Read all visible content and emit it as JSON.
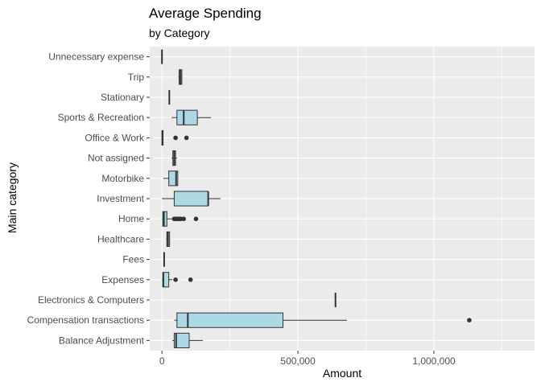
{
  "chart_data": {
    "type": "boxplot",
    "orientation": "horizontal",
    "title": "Average Spending",
    "subtitle": "by Category",
    "xlabel": "Amount",
    "ylabel": "Main category",
    "xlim": [
      -45000,
      1370000
    ],
    "x_ticks": [
      0,
      500000,
      1000000
    ],
    "x_tick_labels": [
      "0",
      "500,000",
      "1,000,000"
    ],
    "grid": true,
    "panel_background": "#EBEBEB",
    "box_fill": "#ADD8E6",
    "categories": [
      {
        "label": "Balance Adjustment",
        "min": 38000,
        "q1": 45000,
        "median": 52000,
        "q3": 100000,
        "max": 150000,
        "outliers": []
      },
      {
        "label": "Compensation transactions",
        "min": 45000,
        "q1": 55000,
        "median": 95000,
        "q3": 445000,
        "max": 680000,
        "outliers": [
          1130000
        ]
      },
      {
        "label": "Electronics & Computers",
        "min": 638000,
        "q1": 638000,
        "median": 638000,
        "q3": 638000,
        "max": 638000,
        "outliers": []
      },
      {
        "label": "Expenses",
        "min": 0,
        "q1": 3000,
        "median": 5000,
        "q3": 25000,
        "max": 38000,
        "outliers": [
          50000,
          105000
        ]
      },
      {
        "label": "Fees",
        "min": 8000,
        "q1": 8000,
        "median": 8000,
        "q3": 8000,
        "max": 8000,
        "outliers": []
      },
      {
        "label": "Healthcare",
        "min": 15000,
        "q1": 18000,
        "median": 22000,
        "q3": 28000,
        "max": 30000,
        "outliers": []
      },
      {
        "label": "Home",
        "min": 0,
        "q1": 3000,
        "median": 7000,
        "q3": 18000,
        "max": 40000,
        "outliers": [
          45000,
          50000,
          55000,
          60000,
          65000,
          70000,
          80000,
          125000
        ]
      },
      {
        "label": "Investment",
        "min": 0,
        "q1": 45000,
        "median": 170000,
        "q3": 170000,
        "max": 215000,
        "outliers": []
      },
      {
        "label": "Motorbike",
        "min": 5000,
        "q1": 25000,
        "median": 52000,
        "q3": 58000,
        "max": 60000,
        "outliers": []
      },
      {
        "label": "Not assigned",
        "min": 35000,
        "q1": 40000,
        "median": 45000,
        "q3": 50000,
        "max": 55000,
        "outliers": []
      },
      {
        "label": "Office & Work",
        "min": 0,
        "q1": 0,
        "median": 2000,
        "q3": 4000,
        "max": 5000,
        "outliers": [
          50000,
          90000
        ]
      },
      {
        "label": "Sports & Recreation",
        "min": 35000,
        "q1": 55000,
        "median": 80000,
        "q3": 130000,
        "max": 180000,
        "outliers": []
      },
      {
        "label": "Stationary",
        "min": 27000,
        "q1": 27000,
        "median": 27000,
        "q3": 27000,
        "max": 27000,
        "outliers": []
      },
      {
        "label": "Trip",
        "min": 60000,
        "q1": 63000,
        "median": 68000,
        "q3": 73000,
        "max": 75000,
        "outliers": []
      },
      {
        "label": "Unnecessary expense",
        "min": 0,
        "q1": 0,
        "median": 0,
        "q3": 0,
        "max": 0,
        "outliers": []
      }
    ]
  }
}
